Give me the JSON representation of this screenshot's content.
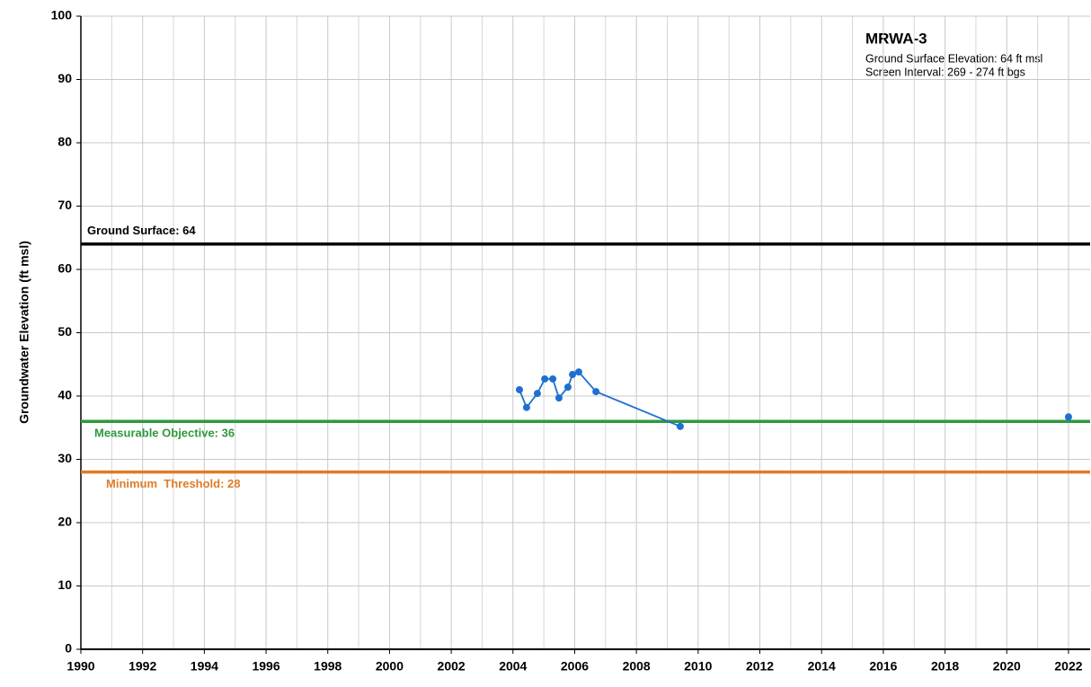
{
  "chart_data": {
    "type": "line",
    "y_label": "Groundwater Elevation (ft msl)",
    "annotation": {
      "title": "MRWA-3",
      "lines": [
        "Ground Surface Elevation: 64 ft msl",
        "Screen Interval: 269 - 274 ft bgs"
      ]
    },
    "xlim": [
      1990,
      2022.7
    ],
    "ylim": [
      0,
      100
    ],
    "xticks": [
      1990,
      1992,
      1994,
      1996,
      1998,
      2000,
      2002,
      2004,
      2006,
      2008,
      2010,
      2012,
      2014,
      2016,
      2018,
      2020,
      2022
    ],
    "x_minor_ticks": [
      1991,
      1993,
      1995,
      1997,
      1999,
      2001,
      2003,
      2005,
      2007,
      2009,
      2011,
      2013,
      2015,
      2017,
      2019,
      2021
    ],
    "yticks": [
      0,
      10,
      20,
      30,
      40,
      50,
      60,
      70,
      80,
      90,
      100
    ],
    "grid": true,
    "reference_lines": [
      {
        "label": "Ground Surface: 64",
        "value": 64,
        "color": "#000000"
      },
      {
        "label": "Measurable Objective: 36",
        "value": 36,
        "color": "#2e9a3c"
      },
      {
        "label": "Minimum  Threshold: 28",
        "value": 28,
        "color": "#e07b28"
      }
    ],
    "series": [
      {
        "color": "#1f6fd1",
        "x": [
          2004.21,
          2004.44,
          2004.79,
          2005.03,
          2005.29,
          2005.49,
          2005.78,
          2005.93,
          2006.13,
          2006.69,
          2009.42,
          null,
          2022.0
        ],
        "values": [
          41.0,
          38.2,
          40.4,
          42.7,
          42.7,
          39.7,
          41.4,
          43.4,
          43.8,
          40.7,
          35.2,
          null,
          36.7
        ]
      }
    ]
  }
}
